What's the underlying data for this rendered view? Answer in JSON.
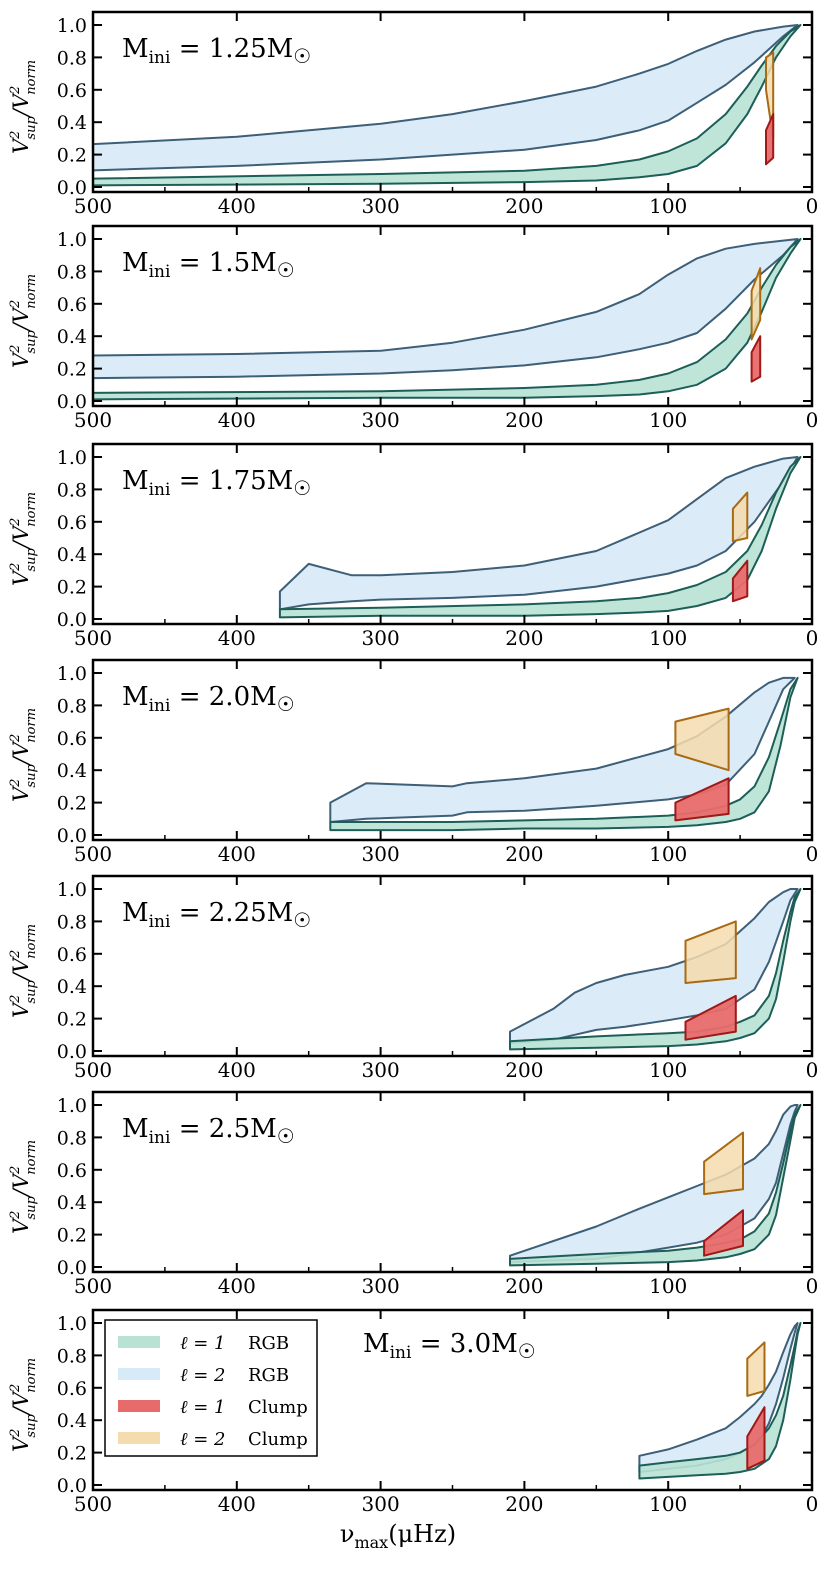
{
  "figure": {
    "xlabel_main": "ν",
    "xlabel_sub": "max",
    "xlabel_unit": "(μHz)",
    "ylabel_v": "V",
    "ylabel_sup": "sup",
    "ylabel_norm": "norm",
    "ylabel_two": "2",
    "ylabel_slash": "/",
    "mass_prefix": "M",
    "mass_sub": "ini",
    "mass_eq": " = ",
    "mass_suffix": "M",
    "sun_symbol": "☉",
    "colors": {
      "l1_rgb": "#b8e2d4",
      "l1_rgb_edge": "#1d5e58",
      "l2_rgb": "#d7eaf7",
      "l2_rgb_edge": "#3d5f78",
      "l1_clump": "#e86b6b",
      "l1_clump_edge": "#a01818",
      "l2_clump": "#f5dcae",
      "l2_clump_edge": "#a86a12"
    }
  },
  "legend": [
    {
      "ell": "ℓ = 1",
      "phase": "RGB"
    },
    {
      "ell": "ℓ = 2",
      "phase": "RGB"
    },
    {
      "ell": "ℓ = 1",
      "phase": "Clump"
    },
    {
      "ell": "ℓ = 2",
      "phase": "Clump"
    }
  ],
  "chart_data": [
    {
      "type": "area",
      "mass": "1.25",
      "xlim": [
        500,
        0
      ],
      "ylim": [
        0,
        1.0
      ],
      "xticks": [
        500,
        400,
        300,
        200,
        100,
        0
      ],
      "yticks": [
        "0.0",
        "0.2",
        "0.4",
        "0.6",
        "0.8",
        "1.0"
      ],
      "series": [
        {
          "name": "l2_rgb",
          "x": [
            510,
            400,
            300,
            250,
            200,
            150,
            120,
            100,
            80,
            60,
            40,
            20,
            10
          ],
          "upper": [
            0.26,
            0.31,
            0.39,
            0.45,
            0.53,
            0.62,
            0.7,
            0.76,
            0.84,
            0.91,
            0.96,
            0.99,
            1.0
          ],
          "lower": [
            0.1,
            0.13,
            0.17,
            0.2,
            0.23,
            0.29,
            0.35,
            0.41,
            0.52,
            0.63,
            0.77,
            0.93,
            1.0
          ]
        },
        {
          "name": "l1_rgb",
          "x": [
            510,
            300,
            200,
            150,
            120,
            100,
            80,
            60,
            45,
            35,
            25,
            15,
            8
          ],
          "upper": [
            0.05,
            0.08,
            0.1,
            0.13,
            0.17,
            0.22,
            0.3,
            0.45,
            0.62,
            0.75,
            0.87,
            0.96,
            1.0
          ],
          "lower": [
            0.01,
            0.02,
            0.03,
            0.04,
            0.06,
            0.08,
            0.13,
            0.27,
            0.45,
            0.62,
            0.8,
            0.93,
            1.0
          ]
        },
        {
          "name": "l2_clump",
          "x": [
            32,
            27,
            27,
            32
          ],
          "upper": [
            0.8,
            0.83,
            0.3,
            0.6
          ],
          "lower": []
        },
        {
          "name": "l1_clump",
          "x": [
            32,
            27,
            27,
            32
          ],
          "upper": [
            0.35,
            0.45,
            0.18,
            0.14
          ],
          "lower": []
        }
      ]
    },
    {
      "type": "area",
      "mass": "1.5",
      "xlim": [
        500,
        0
      ],
      "ylim": [
        0,
        1.0
      ],
      "xticks": [
        500,
        400,
        300,
        200,
        100,
        0
      ],
      "yticks": [
        "0.0",
        "0.2",
        "0.4",
        "0.6",
        "0.8",
        "1.0"
      ],
      "series": [
        {
          "name": "l2_rgb",
          "x": [
            510,
            400,
            300,
            250,
            200,
            150,
            120,
            100,
            80,
            60,
            40,
            20,
            10
          ],
          "upper": [
            0.28,
            0.29,
            0.31,
            0.36,
            0.44,
            0.55,
            0.66,
            0.78,
            0.88,
            0.94,
            0.97,
            0.99,
            1.0
          ],
          "lower": [
            0.14,
            0.15,
            0.17,
            0.19,
            0.22,
            0.27,
            0.32,
            0.36,
            0.42,
            0.57,
            0.75,
            0.9,
            1.0
          ]
        },
        {
          "name": "l1_rgb",
          "x": [
            510,
            300,
            200,
            150,
            120,
            100,
            80,
            60,
            45,
            35,
            25,
            15,
            8
          ],
          "upper": [
            0.05,
            0.06,
            0.08,
            0.1,
            0.13,
            0.17,
            0.24,
            0.38,
            0.54,
            0.7,
            0.84,
            0.95,
            1.0
          ],
          "lower": [
            0.01,
            0.02,
            0.02,
            0.03,
            0.04,
            0.06,
            0.1,
            0.2,
            0.36,
            0.55,
            0.76,
            0.91,
            1.0
          ]
        },
        {
          "name": "l2_clump",
          "x": [
            42,
            36,
            36,
            42
          ],
          "upper": [
            0.68,
            0.82,
            0.5,
            0.38
          ],
          "lower": []
        },
        {
          "name": "l1_clump",
          "x": [
            42,
            36,
            36,
            42
          ],
          "upper": [
            0.3,
            0.4,
            0.15,
            0.12
          ],
          "lower": []
        }
      ]
    },
    {
      "type": "area",
      "mass": "1.75",
      "xlim": [
        500,
        0
      ],
      "ylim": [
        0,
        1.0
      ],
      "xticks": [
        500,
        400,
        300,
        200,
        100,
        0
      ],
      "yticks": [
        "0.0",
        "0.2",
        "0.4",
        "0.6",
        "0.8",
        "1.0"
      ],
      "series": [
        {
          "name": "l2_rgb",
          "x": [
            370,
            350,
            320,
            300,
            250,
            200,
            150,
            100,
            80,
            60,
            40,
            20,
            10
          ],
          "upper": [
            0.17,
            0.34,
            0.27,
            0.27,
            0.29,
            0.33,
            0.42,
            0.61,
            0.74,
            0.87,
            0.94,
            0.99,
            1.0
          ],
          "lower": [
            0.06,
            0.09,
            0.11,
            0.12,
            0.13,
            0.15,
            0.2,
            0.28,
            0.33,
            0.42,
            0.6,
            0.85,
            1.0
          ]
        },
        {
          "name": "l1_rgb",
          "x": [
            370,
            300,
            200,
            150,
            120,
            100,
            80,
            60,
            45,
            35,
            25,
            15,
            8
          ],
          "upper": [
            0.06,
            0.07,
            0.09,
            0.11,
            0.13,
            0.16,
            0.21,
            0.29,
            0.42,
            0.58,
            0.78,
            0.94,
            1.0
          ],
          "lower": [
            0.01,
            0.02,
            0.02,
            0.03,
            0.04,
            0.05,
            0.08,
            0.13,
            0.24,
            0.42,
            0.68,
            0.9,
            1.0
          ]
        },
        {
          "name": "l2_clump",
          "x": [
            55,
            45,
            45,
            55
          ],
          "upper": [
            0.68,
            0.78,
            0.5,
            0.48
          ],
          "lower": []
        },
        {
          "name": "l1_clump",
          "x": [
            55,
            45,
            45,
            55
          ],
          "upper": [
            0.25,
            0.36,
            0.14,
            0.11
          ],
          "lower": []
        }
      ]
    },
    {
      "type": "area",
      "mass": "2.0",
      "xlim": [
        500,
        0
      ],
      "ylim": [
        0,
        1.0
      ],
      "xticks": [
        500,
        400,
        300,
        200,
        100,
        0
      ],
      "yticks": [
        "0.0",
        "0.2",
        "0.4",
        "0.6",
        "0.8",
        "1.0"
      ],
      "series": [
        {
          "name": "l2_rgb",
          "x": [
            335,
            310,
            250,
            240,
            200,
            150,
            100,
            80,
            60,
            40,
            30,
            20,
            12
          ],
          "upper": [
            0.2,
            0.32,
            0.3,
            0.32,
            0.35,
            0.41,
            0.53,
            0.61,
            0.73,
            0.88,
            0.94,
            0.97,
            0.97
          ],
          "lower": [
            0.08,
            0.1,
            0.12,
            0.14,
            0.15,
            0.18,
            0.22,
            0.25,
            0.31,
            0.5,
            0.7,
            0.9,
            0.97
          ]
        },
        {
          "name": "l1_rgb",
          "x": [
            335,
            250,
            200,
            150,
            100,
            80,
            60,
            50,
            40,
            30,
            22,
            15,
            10
          ],
          "upper": [
            0.08,
            0.08,
            0.09,
            0.1,
            0.12,
            0.14,
            0.18,
            0.22,
            0.3,
            0.48,
            0.7,
            0.9,
            0.97
          ],
          "lower": [
            0.03,
            0.03,
            0.04,
            0.04,
            0.05,
            0.06,
            0.08,
            0.1,
            0.14,
            0.27,
            0.55,
            0.85,
            0.97
          ]
        },
        {
          "name": "l2_clump",
          "x": [
            95,
            58,
            58,
            95
          ],
          "upper": [
            0.7,
            0.78,
            0.4,
            0.5
          ],
          "lower": []
        },
        {
          "name": "l1_clump",
          "x": [
            95,
            58,
            58,
            95
          ],
          "upper": [
            0.2,
            0.35,
            0.13,
            0.09
          ],
          "lower": []
        }
      ]
    },
    {
      "type": "area",
      "mass": "2.25",
      "xlim": [
        500,
        0
      ],
      "ylim": [
        0,
        1.0
      ],
      "xticks": [
        500,
        400,
        300,
        200,
        100,
        0
      ],
      "yticks": [
        "0.0",
        "0.2",
        "0.4",
        "0.6",
        "0.8",
        "1.0"
      ],
      "series": [
        {
          "name": "l2_rgb",
          "x": [
            210,
            180,
            165,
            150,
            130,
            100,
            80,
            60,
            40,
            30,
            20,
            15,
            10
          ],
          "upper": [
            0.12,
            0.26,
            0.36,
            0.42,
            0.47,
            0.52,
            0.58,
            0.66,
            0.82,
            0.92,
            0.98,
            1.0,
            1.0
          ],
          "lower": [
            0.05,
            0.07,
            0.1,
            0.13,
            0.15,
            0.19,
            0.22,
            0.26,
            0.38,
            0.55,
            0.8,
            0.93,
            1.0
          ]
        },
        {
          "name": "l1_rgb",
          "x": [
            210,
            150,
            100,
            80,
            60,
            50,
            40,
            30,
            25,
            20,
            15,
            12,
            8
          ],
          "upper": [
            0.06,
            0.09,
            0.11,
            0.12,
            0.15,
            0.18,
            0.22,
            0.34,
            0.48,
            0.68,
            0.86,
            0.95,
            1.0
          ],
          "lower": [
            0.01,
            0.02,
            0.03,
            0.04,
            0.06,
            0.08,
            0.11,
            0.2,
            0.32,
            0.55,
            0.8,
            0.92,
            1.0
          ]
        },
        {
          "name": "l2_clump",
          "x": [
            88,
            53,
            53,
            88
          ],
          "upper": [
            0.68,
            0.8,
            0.45,
            0.42
          ],
          "lower": []
        },
        {
          "name": "l1_clump",
          "x": [
            88,
            53,
            53,
            88
          ],
          "upper": [
            0.18,
            0.34,
            0.12,
            0.07
          ],
          "lower": []
        }
      ]
    },
    {
      "type": "area",
      "mass": "2.5",
      "xlim": [
        500,
        0
      ],
      "ylim": [
        0,
        1.0
      ],
      "xticks": [
        500,
        400,
        300,
        200,
        100,
        0
      ],
      "yticks": [
        "0.0",
        "0.2",
        "0.4",
        "0.6",
        "0.8",
        "1.0"
      ],
      "series": [
        {
          "name": "l2_rgb",
          "x": [
            210,
            150,
            120,
            100,
            80,
            60,
            40,
            30,
            25,
            20,
            15,
            12,
            10
          ],
          "upper": [
            0.07,
            0.25,
            0.36,
            0.43,
            0.5,
            0.57,
            0.67,
            0.76,
            0.84,
            0.94,
            0.99,
            1.0,
            1.0
          ],
          "lower": [
            0.03,
            0.05,
            0.09,
            0.12,
            0.15,
            0.2,
            0.3,
            0.42,
            0.52,
            0.7,
            0.88,
            0.96,
            1.0
          ]
        },
        {
          "name": "l1_rgb",
          "x": [
            210,
            150,
            100,
            80,
            60,
            50,
            40,
            30,
            25,
            20,
            15,
            12,
            8
          ],
          "upper": [
            0.05,
            0.08,
            0.1,
            0.12,
            0.15,
            0.17,
            0.22,
            0.33,
            0.46,
            0.64,
            0.84,
            0.94,
            1.0
          ],
          "lower": [
            0.01,
            0.02,
            0.03,
            0.04,
            0.06,
            0.08,
            0.11,
            0.2,
            0.32,
            0.55,
            0.78,
            0.92,
            1.0
          ]
        },
        {
          "name": "l2_clump",
          "x": [
            75,
            48,
            48,
            75
          ],
          "upper": [
            0.65,
            0.83,
            0.48,
            0.45
          ],
          "lower": []
        },
        {
          "name": "l1_clump",
          "x": [
            75,
            48,
            48,
            75
          ],
          "upper": [
            0.16,
            0.35,
            0.13,
            0.07
          ],
          "lower": []
        }
      ]
    },
    {
      "type": "area",
      "mass": "3.0",
      "xlim": [
        500,
        0
      ],
      "ylim": [
        0,
        1.0
      ],
      "xticks": [
        500,
        400,
        300,
        200,
        100,
        0
      ],
      "yticks": [
        "0.0",
        "0.2",
        "0.4",
        "0.6",
        "0.8",
        "1.0"
      ],
      "series": [
        {
          "name": "l2_rgb",
          "x": [
            120,
            100,
            80,
            60,
            50,
            40,
            35,
            30,
            25,
            20,
            15,
            12,
            10
          ],
          "upper": [
            0.18,
            0.22,
            0.28,
            0.35,
            0.42,
            0.5,
            0.55,
            0.62,
            0.7,
            0.82,
            0.93,
            0.98,
            1.0
          ],
          "lower": [
            0.08,
            0.1,
            0.12,
            0.16,
            0.2,
            0.25,
            0.3,
            0.38,
            0.5,
            0.66,
            0.84,
            0.94,
            1.0
          ]
        },
        {
          "name": "l1_rgb",
          "x": [
            120,
            100,
            80,
            60,
            50,
            40,
            30,
            25,
            20,
            15,
            12,
            10,
            8
          ],
          "upper": [
            0.12,
            0.14,
            0.16,
            0.18,
            0.2,
            0.25,
            0.35,
            0.43,
            0.55,
            0.74,
            0.86,
            0.95,
            1.0
          ],
          "lower": [
            0.04,
            0.05,
            0.06,
            0.07,
            0.08,
            0.1,
            0.16,
            0.24,
            0.4,
            0.65,
            0.82,
            0.93,
            1.0
          ]
        },
        {
          "name": "l2_clump",
          "x": [
            45,
            33,
            33,
            45
          ],
          "upper": [
            0.78,
            0.88,
            0.58,
            0.55
          ],
          "lower": []
        },
        {
          "name": "l1_clump",
          "x": [
            45,
            33,
            33,
            45
          ],
          "upper": [
            0.3,
            0.48,
            0.15,
            0.1
          ],
          "lower": []
        }
      ]
    }
  ]
}
